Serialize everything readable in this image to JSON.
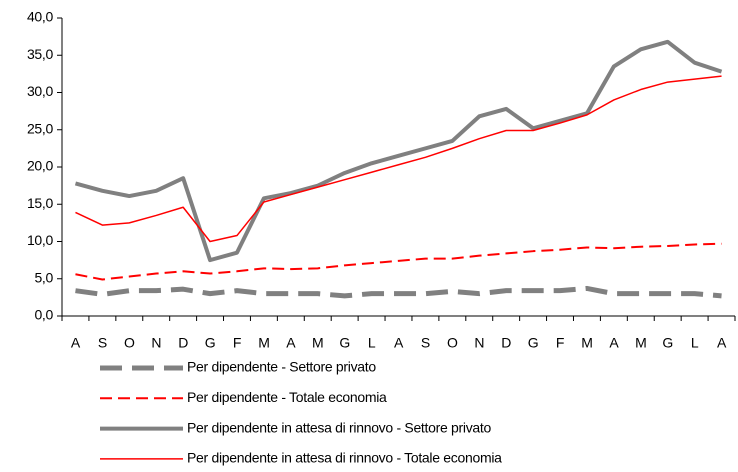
{
  "chart_data": {
    "type": "line",
    "categories": [
      "A",
      "S",
      "O",
      "N",
      "D",
      "G",
      "F",
      "M",
      "A",
      "M",
      "G",
      "L",
      "A",
      "S",
      "O",
      "N",
      "D",
      "G",
      "F",
      "M",
      "A",
      "M",
      "G",
      "L",
      "A"
    ],
    "series": [
      {
        "name": "Per dipendente - Settore privato",
        "color": "#808080",
        "dashed": true,
        "width": 5,
        "values": [
          3.4,
          2.9,
          3.4,
          3.4,
          3.6,
          3.0,
          3.4,
          3.0,
          3.0,
          3.0,
          2.7,
          3.0,
          3.0,
          3.0,
          3.3,
          3.0,
          3.4,
          3.4,
          3.4,
          3.7,
          3.0,
          3.0,
          3.0,
          3.0,
          2.7
        ]
      },
      {
        "name": "Per dipendente - Totale economia",
        "color": "#ff0000",
        "dashed": true,
        "width": 2,
        "values": [
          5.6,
          4.9,
          5.3,
          5.7,
          6.0,
          5.7,
          6.0,
          6.4,
          6.3,
          6.4,
          6.8,
          7.1,
          7.4,
          7.7,
          7.7,
          8.1,
          8.4,
          8.7,
          8.9,
          9.2,
          9.1,
          9.3,
          9.4,
          9.6,
          9.7
        ]
      },
      {
        "name": "Per dipendente in attesa di rinnovo - Settore privato",
        "color": "#808080",
        "dashed": false,
        "width": 4,
        "values": [
          17.8,
          16.8,
          16.1,
          16.8,
          18.5,
          7.5,
          8.5,
          15.8,
          16.5,
          17.5,
          19.2,
          20.5,
          21.5,
          22.5,
          23.5,
          26.8,
          27.8,
          25.2,
          26.2,
          27.2,
          33.5,
          35.8,
          36.8,
          34.0,
          32.8
        ]
      },
      {
        "name": "Per dipendente in attesa di rinnovo - Totale economia",
        "color": "#ff0000",
        "dashed": false,
        "width": 1.5,
        "values": [
          13.9,
          12.2,
          12.5,
          13.5,
          14.6,
          10.0,
          10.8,
          15.3,
          16.3,
          17.3,
          18.3,
          19.3,
          20.3,
          21.3,
          22.5,
          23.8,
          24.9,
          24.9,
          25.9,
          27.0,
          29.0,
          30.4,
          31.4,
          31.8,
          32.2
        ]
      }
    ],
    "ylim": [
      0,
      40
    ],
    "yticks": [
      {
        "value": 0,
        "label": "0,0"
      },
      {
        "value": 5,
        "label": "5,0"
      },
      {
        "value": 10,
        "label": "10,0"
      },
      {
        "value": 15,
        "label": "15,0"
      },
      {
        "value": 20,
        "label": "20,0"
      },
      {
        "value": 25,
        "label": "25,0"
      },
      {
        "value": 30,
        "label": "30,0"
      },
      {
        "value": 35,
        "label": "35,0"
      },
      {
        "value": 40,
        "label": "40,0"
      }
    ],
    "grid": false
  }
}
